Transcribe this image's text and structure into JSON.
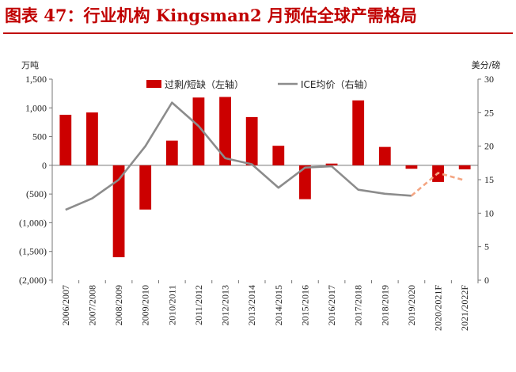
{
  "title": "图表 47：行业机构 Kingsman2 月预估全球产需格局",
  "chart_data": {
    "type": "bar+line",
    "title": "图表 47：行业机构 Kingsman2 月预估全球产需格局",
    "categories": [
      "2006/2007",
      "2007/2008",
      "2008/2009",
      "2009/2010",
      "2010/2011",
      "2011/2012",
      "2012/2013",
      "2013/2014",
      "2014/2015",
      "2015/2016",
      "2016/2017",
      "2017/2018",
      "2018/2019",
      "2019/2020",
      "2020/2021F",
      "2021/2022F"
    ],
    "left_axis": {
      "unit": "万吨",
      "ylim": [
        -2000,
        1500
      ],
      "ticks": [
        1500,
        1000,
        500,
        0,
        -500,
        -1000,
        -1500,
        -2000
      ],
      "tick_labels": [
        "1,500",
        "1,000",
        "500",
        "0",
        "(500)",
        "(1,000)",
        "(1,500)",
        "(2,000)"
      ]
    },
    "right_axis": {
      "unit": "美分/磅",
      "ylim": [
        0,
        30
      ],
      "ticks": [
        30,
        25,
        20,
        15,
        10,
        5,
        0
      ],
      "tick_labels": [
        "30",
        "25",
        "20",
        "15",
        "10",
        "5",
        "0"
      ]
    },
    "series": [
      {
        "name": "过剩/短缺（左轴）",
        "type": "bar",
        "axis": "left",
        "color": "#cc0000",
        "values": [
          880,
          920,
          -1600,
          -770,
          430,
          1180,
          1190,
          840,
          340,
          -590,
          30,
          1130,
          320,
          -60,
          -290,
          -70
        ]
      },
      {
        "name": "ICE均价（右轴）",
        "type": "line",
        "axis": "right",
        "color": "#8c8c8c",
        "forecast_color": "#f4a582",
        "values": [
          10.5,
          12.2,
          15.0,
          20.0,
          26.5,
          23.0,
          18.2,
          17.3,
          13.8,
          16.8,
          17.0,
          13.5,
          12.9,
          12.6,
          16.0,
          14.9
        ],
        "forecast_from_index": 13
      }
    ],
    "legend": [
      "过剩/短缺（左轴）",
      "ICE均价（右轴）"
    ]
  }
}
